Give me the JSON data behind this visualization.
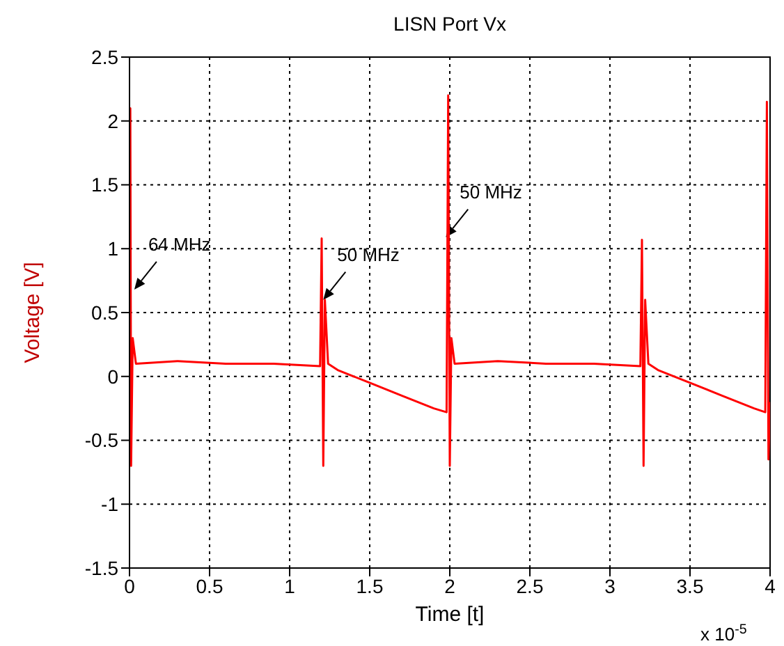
{
  "chart_data": {
    "type": "line",
    "title": "LISN Port Vx",
    "xlabel": "Time [t]",
    "ylabel": "Voltage [V]",
    "x": [
      0,
      0.005,
      0.01,
      0.02,
      0.04,
      0.3,
      0.6,
      0.9,
      1.19,
      1.2,
      1.21,
      1.22,
      1.24,
      1.3,
      1.5,
      1.7,
      1.9,
      1.98,
      1.99,
      2.0,
      2.01,
      2.03,
      2.3,
      2.6,
      2.9,
      3.19,
      3.2,
      3.21,
      3.22,
      3.24,
      3.3,
      3.5,
      3.7,
      3.9,
      3.97,
      3.98,
      3.99,
      4.0
    ],
    "series": [
      {
        "color": "#ff0000",
        "values": [
          -0.7,
          2.1,
          -0.7,
          0.3,
          0.1,
          0.12,
          0.1,
          0.1,
          0.08,
          1.08,
          -0.7,
          0.6,
          0.1,
          0.05,
          -0.05,
          -0.15,
          -0.25,
          -0.28,
          2.2,
          -0.7,
          0.3,
          0.1,
          0.12,
          0.1,
          0.1,
          0.08,
          1.07,
          -0.7,
          0.6,
          0.1,
          0.05,
          -0.05,
          -0.15,
          -0.25,
          -0.28,
          2.15,
          -0.65,
          -0.2
        ]
      }
    ],
    "xlim": [
      0,
      4
    ],
    "xticks": [
      0,
      0.5,
      1,
      1.5,
      2,
      2.5,
      3,
      3.5,
      4
    ],
    "ylim": [
      -1.5,
      2.5
    ],
    "yticks": [
      -1.5,
      -1,
      -0.5,
      0,
      0.5,
      1,
      1.5,
      2,
      2.5
    ],
    "grid": true,
    "marker": "none",
    "line_style": "solid",
    "annotations": [
      {
        "text": "64 MHz",
        "x": 0.03,
        "y": 0.68
      },
      {
        "text": "50 MHz",
        "x": 1.21,
        "y": 0.6
      },
      {
        "text": "50 MHz",
        "x": 1.975,
        "y": 1.09
      },
      "x 10$^{-5}$"
    ]
  }
}
